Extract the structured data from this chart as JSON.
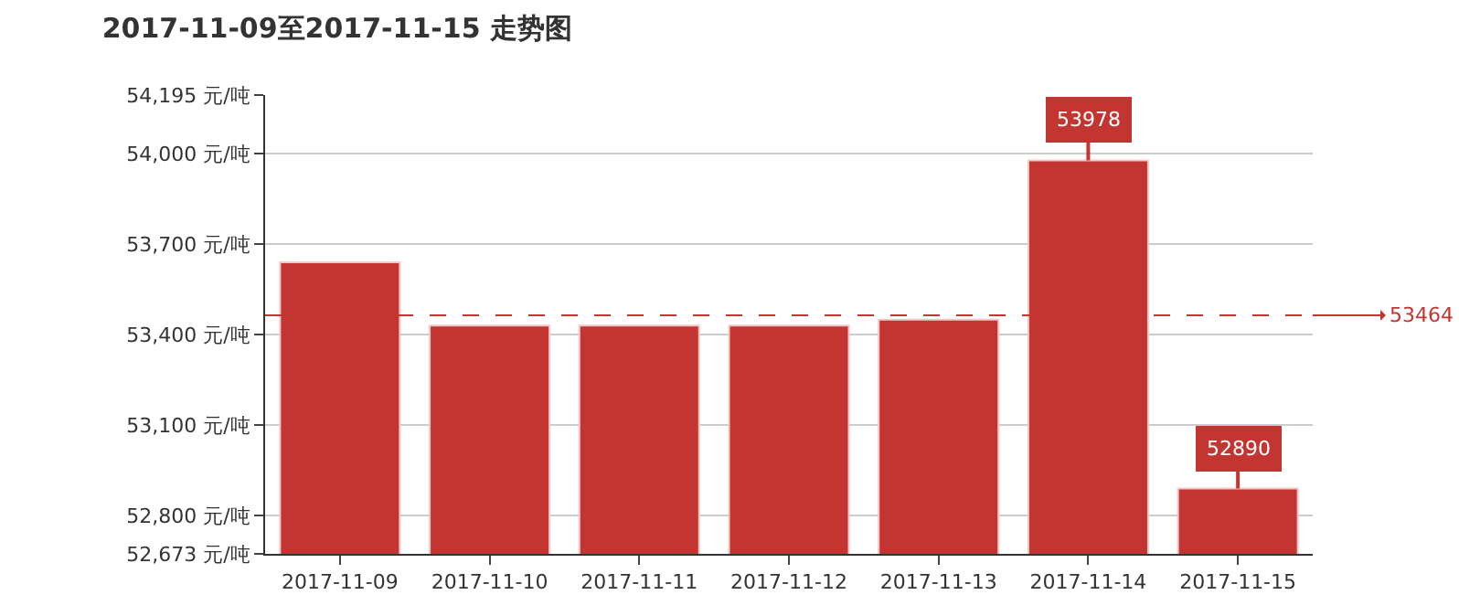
{
  "chart_data": {
    "type": "bar",
    "title": "2017-11-09至2017-11-15 走势图",
    "categories": [
      "2017-11-09",
      "2017-11-10",
      "2017-11-11",
      "2017-11-12",
      "2017-11-13",
      "2017-11-14",
      "2017-11-15"
    ],
    "values": [
      53640,
      53430,
      53430,
      53430,
      53450,
      53978,
      52890
    ],
    "value_labels": [
      null,
      null,
      null,
      null,
      null,
      "53978",
      "52890"
    ],
    "color": "#c23531",
    "ylim": [
      52673,
      54195
    ],
    "yticks": [
      {
        "value": 52673,
        "label": "52,673 元/吨"
      },
      {
        "value": 52800,
        "label": "52,800 元/吨"
      },
      {
        "value": 53100,
        "label": "53,100 元/吨"
      },
      {
        "value": 53400,
        "label": "53,400 元/吨"
      },
      {
        "value": 53700,
        "label": "53,700 元/吨"
      },
      {
        "value": 54000,
        "label": "54,000 元/吨"
      },
      {
        "value": 54195,
        "label": "54,195 元/吨"
      }
    ],
    "ref_lines": [
      {
        "axis": "y",
        "value": 53464,
        "label": "53464",
        "color": "#c23531",
        "line_style": "dashed"
      }
    ],
    "grid": "y"
  }
}
